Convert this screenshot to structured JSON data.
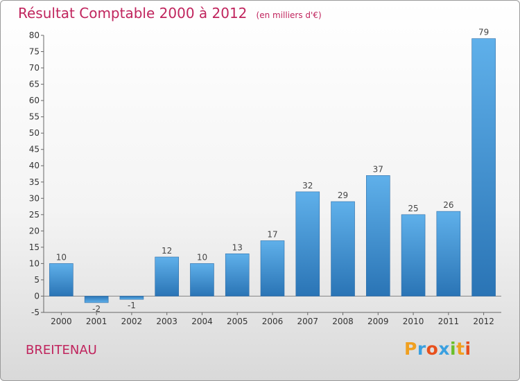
{
  "title": "Résultat Comptable 2000 à 2012",
  "unit": "(en milliers d'€)",
  "commune": "BREITENAU",
  "logo": {
    "letters": [
      "P",
      "r",
      "o",
      "x",
      "i",
      "t",
      "i"
    ],
    "colors": [
      "#f0a020",
      "#3aa0e0",
      "#e8501c",
      "#3aa0e0",
      "#6bbf2a",
      "#f0a020",
      "#e8501c"
    ]
  },
  "colors": {
    "bar": "#3d8fd1",
    "title": "#c0245d"
  },
  "chart_data": {
    "type": "bar",
    "categories": [
      "2000",
      "2001",
      "2002",
      "2003",
      "2004",
      "2005",
      "2006",
      "2007",
      "2008",
      "2009",
      "2010",
      "2011",
      "2012"
    ],
    "values": [
      10,
      -2,
      -1,
      12,
      10,
      13,
      17,
      32,
      29,
      37,
      25,
      26,
      79
    ],
    "data_labels": [
      "10",
      "-2",
      "-1",
      "12",
      "10",
      "13",
      "17",
      "32",
      "29",
      "37",
      "25",
      "26",
      "79"
    ],
    "title": "Résultat Comptable 2000 à 2012",
    "xlabel": "",
    "ylabel": "",
    "ylim": [
      -5,
      80
    ],
    "yticks": [
      -5,
      0,
      5,
      10,
      15,
      20,
      25,
      30,
      35,
      40,
      45,
      50,
      55,
      60,
      65,
      70,
      75,
      80
    ],
    "grid": false,
    "legend": "none"
  }
}
